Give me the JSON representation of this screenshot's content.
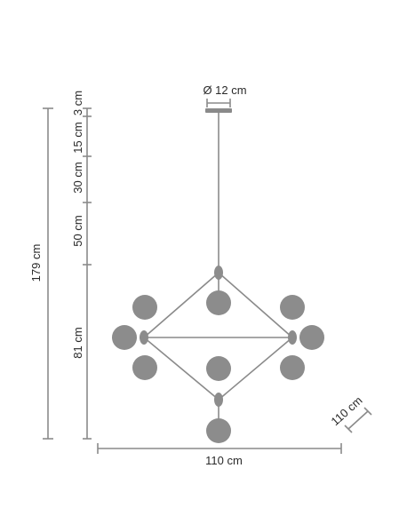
{
  "dimensions": {
    "total_height": "179 cm",
    "segment_1": "3 cm",
    "segment_2": "15 cm",
    "segment_3": "30 cm",
    "segment_4": "50 cm",
    "segment_5": "81 cm",
    "canopy_diameter": "Ø 12 cm",
    "width": "110 cm",
    "depth": "110 cm"
  },
  "colors": {
    "line": "#8a8a8a",
    "globe": "#8c8c8c",
    "text": "#2a2a2a"
  }
}
